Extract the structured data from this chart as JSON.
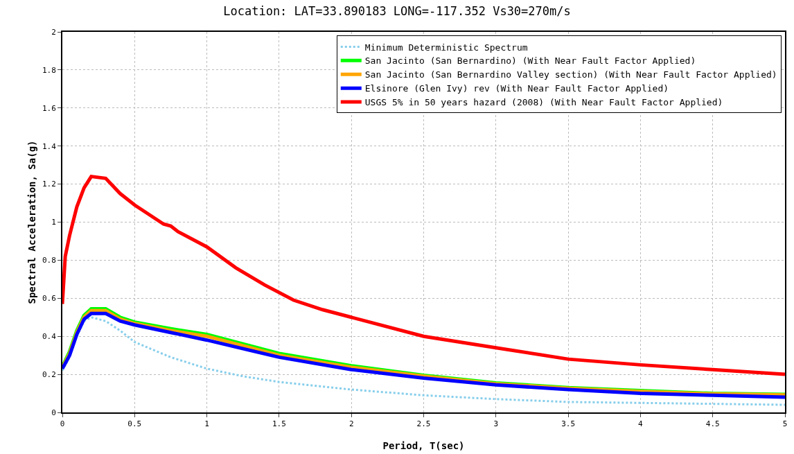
{
  "chart_data": {
    "type": "line",
    "title": "Location: LAT=33.890183 LONG=-117.352 Vs30=270m/s",
    "xlabel": "Period, T(sec)",
    "ylabel": "Spectral Acceleration, Sa(g)",
    "xlim": [
      0,
      5
    ],
    "ylim": [
      0,
      2
    ],
    "xticks": [
      0,
      0.5,
      1,
      1.5,
      2,
      2.5,
      3,
      3.5,
      4,
      4.5,
      5
    ],
    "yticks": [
      0,
      0.2,
      0.4,
      0.6,
      0.8,
      1,
      1.2,
      1.4,
      1.6,
      1.8,
      2
    ],
    "grid": true,
    "legend": "top right",
    "series": [
      {
        "name": "Minimum Deterministic Spectrum",
        "color": "#87ceeb",
        "line_style": "dotted",
        "x": [
          0,
          0.05,
          0.1,
          0.15,
          0.2,
          0.3,
          0.4,
          0.5,
          0.75,
          1,
          1.25,
          1.5,
          2,
          2.5,
          3,
          3.5,
          4,
          4.5,
          5
        ],
        "values": [
          0.22,
          0.29,
          0.4,
          0.48,
          0.5,
          0.48,
          0.43,
          0.37,
          0.29,
          0.23,
          0.19,
          0.16,
          0.12,
          0.09,
          0.07,
          0.055,
          0.05,
          0.045,
          0.04
        ]
      },
      {
        "name": "San Jacinto (San Bernardino) (With Near Fault Factor Applied)",
        "color": "#00ff00",
        "x": [
          0,
          0.05,
          0.1,
          0.15,
          0.2,
          0.3,
          0.4,
          0.5,
          0.75,
          1,
          1.5,
          2,
          2.5,
          3,
          3.5,
          4,
          4.5,
          5
        ],
        "values": [
          0.24,
          0.32,
          0.43,
          0.51,
          0.545,
          0.545,
          0.5,
          0.475,
          0.44,
          0.41,
          0.31,
          0.245,
          0.195,
          0.155,
          0.13,
          0.115,
          0.1,
          0.095
        ]
      },
      {
        "name": "San Jacinto (San Bernardino Valley section) (With Near Fault Factor Applied)",
        "color": "#ffa500",
        "x": [
          0,
          0.05,
          0.1,
          0.15,
          0.2,
          0.3,
          0.4,
          0.5,
          0.75,
          1,
          1.5,
          2,
          2.5,
          3,
          3.5,
          4,
          4.5,
          5
        ],
        "values": [
          0.235,
          0.31,
          0.42,
          0.5,
          0.535,
          0.535,
          0.49,
          0.467,
          0.43,
          0.4,
          0.3,
          0.237,
          0.19,
          0.15,
          0.127,
          0.11,
          0.097,
          0.092
        ]
      },
      {
        "name": "Elsinore (Glen Ivy) rev (With Near Fault Factor Applied)",
        "color": "#0000ff",
        "x": [
          0,
          0.05,
          0.1,
          0.15,
          0.2,
          0.3,
          0.4,
          0.5,
          0.75,
          1,
          1.5,
          2,
          2.5,
          3,
          3.5,
          4,
          4.5,
          5
        ],
        "values": [
          0.23,
          0.3,
          0.41,
          0.49,
          0.52,
          0.52,
          0.48,
          0.46,
          0.42,
          0.38,
          0.29,
          0.225,
          0.18,
          0.145,
          0.12,
          0.1,
          0.09,
          0.08
        ]
      },
      {
        "name": "USGS 5% in 50 years hazard (2008) (With Near Fault Factor Applied)",
        "color": "#ff0000",
        "x": [
          0,
          0.02,
          0.05,
          0.1,
          0.15,
          0.2,
          0.3,
          0.4,
          0.5,
          0.6,
          0.7,
          0.75,
          0.8,
          1,
          1.2,
          1.4,
          1.6,
          1.8,
          2,
          2.5,
          3,
          3.5,
          4,
          4.5,
          5
        ],
        "values": [
          0.57,
          0.82,
          0.93,
          1.08,
          1.18,
          1.24,
          1.23,
          1.15,
          1.09,
          1.04,
          0.99,
          0.98,
          0.95,
          0.87,
          0.76,
          0.67,
          0.59,
          0.54,
          0.5,
          0.4,
          0.34,
          0.28,
          0.25,
          0.225,
          0.2
        ]
      }
    ]
  }
}
